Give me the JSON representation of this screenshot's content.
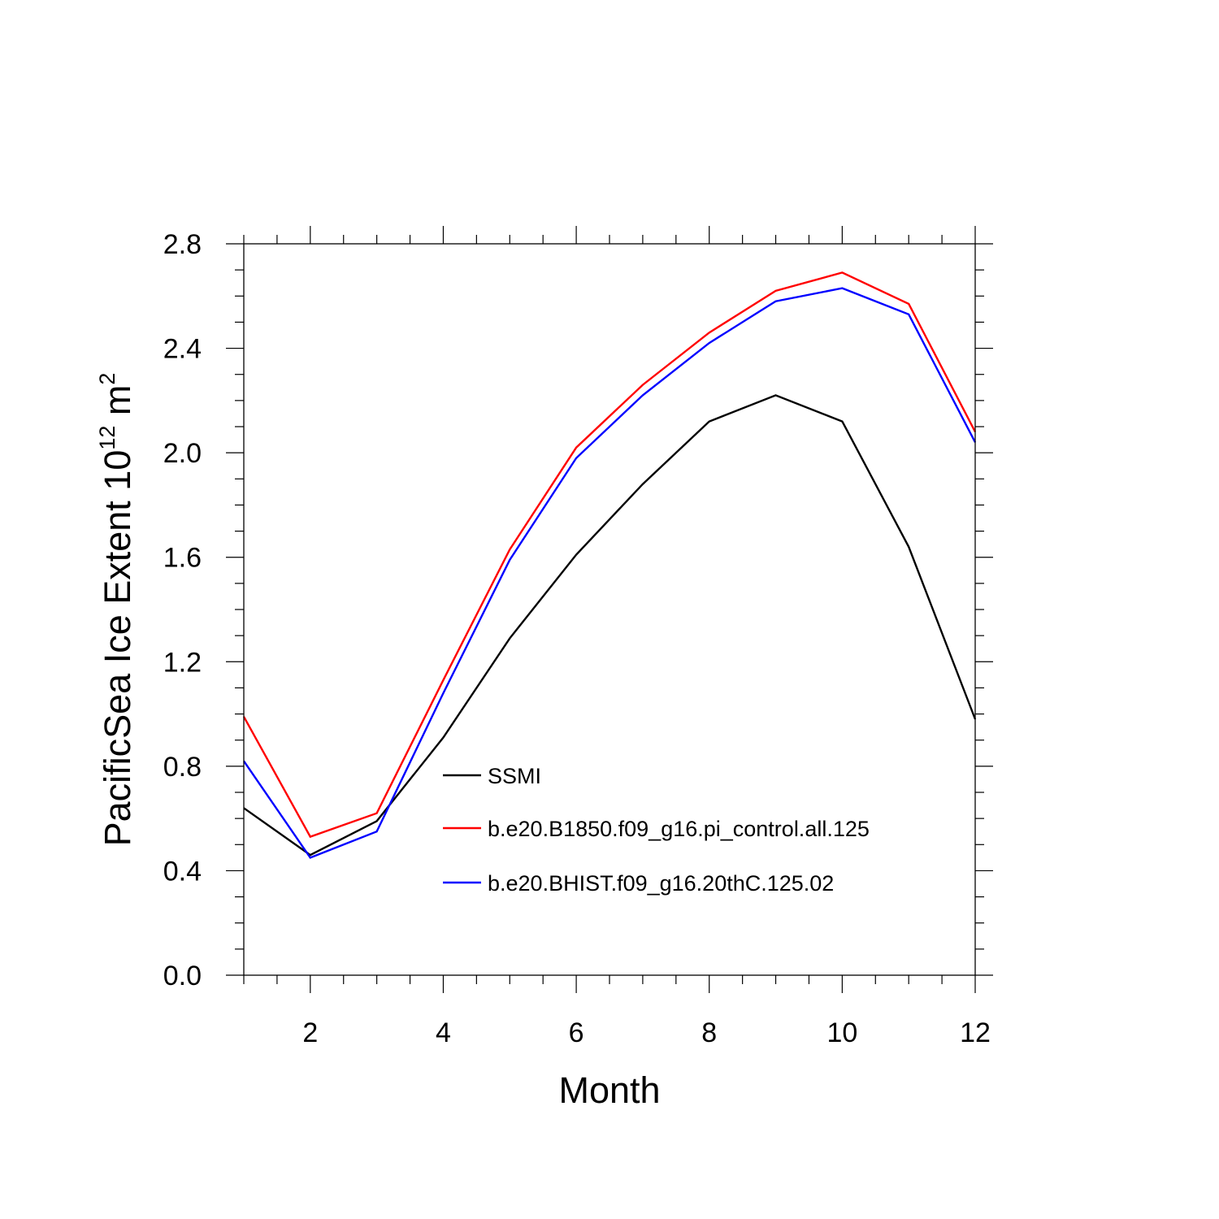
{
  "chart_data": {
    "type": "line",
    "xlabel": "Month",
    "ylabel": {
      "base": "PacificSea Ice Extent 10",
      "exponent": "12",
      "unit": " m",
      "unit_exponent": "2"
    },
    "xlim": [
      1,
      12
    ],
    "ylim": [
      0.0,
      2.8
    ],
    "x_ticks": [
      2,
      4,
      6,
      8,
      10,
      12
    ],
    "x_tick_labels": [
      "2",
      "4",
      "6",
      "8",
      "10",
      "12"
    ],
    "y_ticks": [
      0.0,
      0.4,
      0.8,
      1.2,
      1.6,
      2.0,
      2.4,
      2.8
    ],
    "y_tick_labels": [
      "0.0",
      "0.4",
      "0.8",
      "1.2",
      "1.6",
      "2.0",
      "2.4",
      "2.8"
    ],
    "grid": false,
    "legend_position": "lower-center",
    "x": [
      1,
      2,
      3,
      4,
      5,
      6,
      7,
      8,
      9,
      10,
      11,
      12
    ],
    "series": [
      {
        "name": "SSMI",
        "color": "#000000",
        "values": [
          0.64,
          0.46,
          0.59,
          0.91,
          1.29,
          1.61,
          1.88,
          2.12,
          2.22,
          2.12,
          1.64,
          0.98
        ]
      },
      {
        "name": "b.e20.B1850.f09_g16.pi_control.all.125",
        "color": "#ff0000",
        "values": [
          0.99,
          0.53,
          0.62,
          1.13,
          1.63,
          2.02,
          2.26,
          2.46,
          2.62,
          2.69,
          2.57,
          2.08
        ]
      },
      {
        "name": "b.e20.BHIST.f09_g16.20thC.125.02",
        "color": "#0000ff",
        "values": [
          0.82,
          0.45,
          0.55,
          1.08,
          1.59,
          1.98,
          2.22,
          2.42,
          2.58,
          2.63,
          2.53,
          2.04
        ]
      }
    ]
  }
}
